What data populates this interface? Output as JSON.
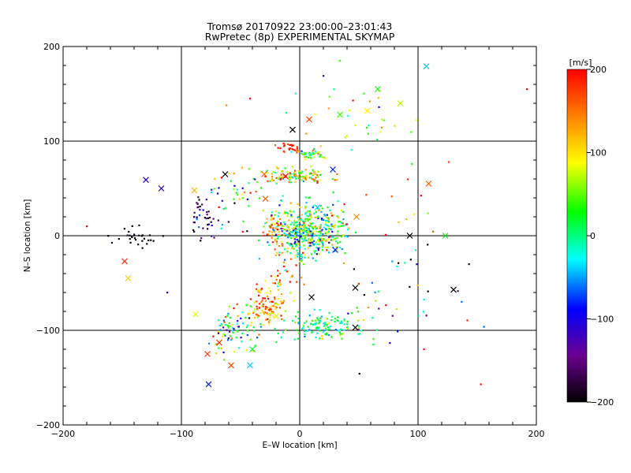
{
  "chart_data": {
    "type": "scatter",
    "title": "Tromsø 20170922 23:00:00–23:01:43",
    "subtitle": "RwPretec (8p) EXPERIMENTAL SKYMAP",
    "xlabel": "E–W location [km]",
    "ylabel": "N–S location [km]",
    "xlim": [
      -200,
      200
    ],
    "ylim": [
      -200,
      200
    ],
    "xticks": [
      "−200",
      "−100",
      "0",
      "100",
      "200"
    ],
    "yticks": [
      "−200",
      "−100",
      "0",
      "100",
      "200"
    ],
    "grid": true,
    "colorbar": {
      "label": "[m/s]",
      "range": [
        -200,
        200
      ],
      "ticks": [
        "200",
        "100",
        "0",
        "−100",
        "−200"
      ],
      "colormap": [
        "#000000",
        "#6a0090",
        "#0000ff",
        "#00ffff",
        "#00ff00",
        "#ffff00",
        "#ff8000",
        "#ff0000"
      ]
    },
    "clusters": [
      {
        "x": 5,
        "y": 5,
        "sx": 14,
        "sy": 14,
        "n": 430,
        "v": 10,
        "sv": 70
      },
      {
        "x": -20,
        "y": 5,
        "sx": 6,
        "sy": 12,
        "n": 50,
        "v": 140,
        "sv": 40
      },
      {
        "x": 30,
        "y": 8,
        "sx": 6,
        "sy": 12,
        "n": 40,
        "v": 60,
        "sv": 70
      },
      {
        "x": -5,
        "y": 63,
        "sx": 15,
        "sy": 4,
        "n": 110,
        "v": 90,
        "sv": 70
      },
      {
        "x": 10,
        "y": 86,
        "sx": 8,
        "sy": 2.5,
        "n": 40,
        "v": 40,
        "sv": 60
      },
      {
        "x": -8,
        "y": 93,
        "sx": 5,
        "sy": 2.5,
        "n": 25,
        "v": 180,
        "sv": 20
      },
      {
        "x": -80,
        "y": 20,
        "sx": 7,
        "sy": 12,
        "n": 45,
        "v": -140,
        "sv": 50
      },
      {
        "x": -140,
        "y": -2,
        "sx": 10,
        "sy": 6,
        "n": 30,
        "v": -200,
        "sv": 15
      },
      {
        "x": -30,
        "y": -75,
        "sx": 8,
        "sy": 8,
        "n": 90,
        "v": 140,
        "sv": 50
      },
      {
        "x": -55,
        "y": -100,
        "sx": 11,
        "sy": 14,
        "n": 90,
        "v": 20,
        "sv": 90
      },
      {
        "x": 20,
        "y": -95,
        "sx": 16,
        "sy": 8,
        "n": 130,
        "v": 10,
        "sv": 35
      },
      {
        "x": -15,
        "y": -50,
        "sx": 8,
        "sy": 10,
        "n": 40,
        "v": 130,
        "sv": 50
      },
      {
        "x": -55,
        "y": 40,
        "sx": 15,
        "sy": 15,
        "n": 40,
        "v": 60,
        "sv": 110
      },
      {
        "x": 45,
        "y": 125,
        "sx": 25,
        "sy": 20,
        "n": 30,
        "v": 60,
        "sv": 70
      },
      {
        "x": 80,
        "y": -60,
        "sx": 30,
        "sy": 30,
        "n": 40,
        "v": -20,
        "sv": 140
      },
      {
        "x": 90,
        "y": 35,
        "sx": 25,
        "sy": 20,
        "n": 12,
        "v": 150,
        "sv": 50
      }
    ],
    "crosses": [
      {
        "x": -6,
        "y": 112,
        "v": -200
      },
      {
        "x": 8,
        "y": 123,
        "v": 170
      },
      {
        "x": 34,
        "y": 128,
        "v": 40
      },
      {
        "x": 66,
        "y": 155,
        "v": 30
      },
      {
        "x": 85,
        "y": 140,
        "v": 70
      },
      {
        "x": 57,
        "y": 132,
        "v": 90
      },
      {
        "x": 107,
        "y": 179,
        "v": -40
      },
      {
        "x": -130,
        "y": 59,
        "v": -100
      },
      {
        "x": -117,
        "y": 50,
        "v": -100
      },
      {
        "x": -89,
        "y": 48,
        "v": 120
      },
      {
        "x": -63,
        "y": 65,
        "v": -200
      },
      {
        "x": -30,
        "y": 65,
        "v": 160
      },
      {
        "x": -12,
        "y": 63,
        "v": 200
      },
      {
        "x": 3,
        "y": 61,
        "v": 100
      },
      {
        "x": 28,
        "y": 70,
        "v": -80
      },
      {
        "x": 15,
        "y": 30,
        "v": -40
      },
      {
        "x": 48,
        "y": 20,
        "v": 140
      },
      {
        "x": -29,
        "y": 39,
        "v": 160
      },
      {
        "x": 93,
        "y": 0,
        "v": -200
      },
      {
        "x": 123,
        "y": 0,
        "v": 30
      },
      {
        "x": 109,
        "y": 55,
        "v": 160
      },
      {
        "x": -145,
        "y": -45,
        "v": 110
      },
      {
        "x": -148,
        "y": -27,
        "v": 180
      },
      {
        "x": -88,
        "y": -83,
        "v": 80
      },
      {
        "x": -68,
        "y": -113,
        "v": 180
      },
      {
        "x": -78,
        "y": -125,
        "v": 180
      },
      {
        "x": -40,
        "y": -120,
        "v": 20
      },
      {
        "x": -58,
        "y": -137,
        "v": 170
      },
      {
        "x": -42,
        "y": -137,
        "v": -40
      },
      {
        "x": -77,
        "y": -157,
        "v": -80
      },
      {
        "x": 47,
        "y": -97,
        "v": -200
      },
      {
        "x": 130,
        "y": -57,
        "v": -200
      },
      {
        "x": 30,
        "y": -15,
        "v": -80
      },
      {
        "x": 47,
        "y": -55,
        "v": -200
      },
      {
        "x": -20,
        "y": -85,
        "v": 80
      },
      {
        "x": 10,
        "y": -65,
        "v": -200
      }
    ],
    "outliers": [
      {
        "x": -180,
        "y": 10,
        "v": 200
      },
      {
        "x": 192,
        "y": 155,
        "v": 200
      },
      {
        "x": 153,
        "y": -157,
        "v": 200
      },
      {
        "x": 105,
        "y": -120,
        "v": 200
      },
      {
        "x": 143,
        "y": -30,
        "v": -200
      },
      {
        "x": 126,
        "y": 78,
        "v": 170
      },
      {
        "x": 34,
        "y": 185,
        "v": 40
      },
      {
        "x": 20,
        "y": 169,
        "v": -100
      },
      {
        "x": -42,
        "y": 145,
        "v": 200
      },
      {
        "x": -62,
        "y": 138,
        "v": 140
      },
      {
        "x": 45,
        "y": 143,
        "v": 200
      },
      {
        "x": -112,
        "y": -60,
        "v": -100
      }
    ]
  }
}
